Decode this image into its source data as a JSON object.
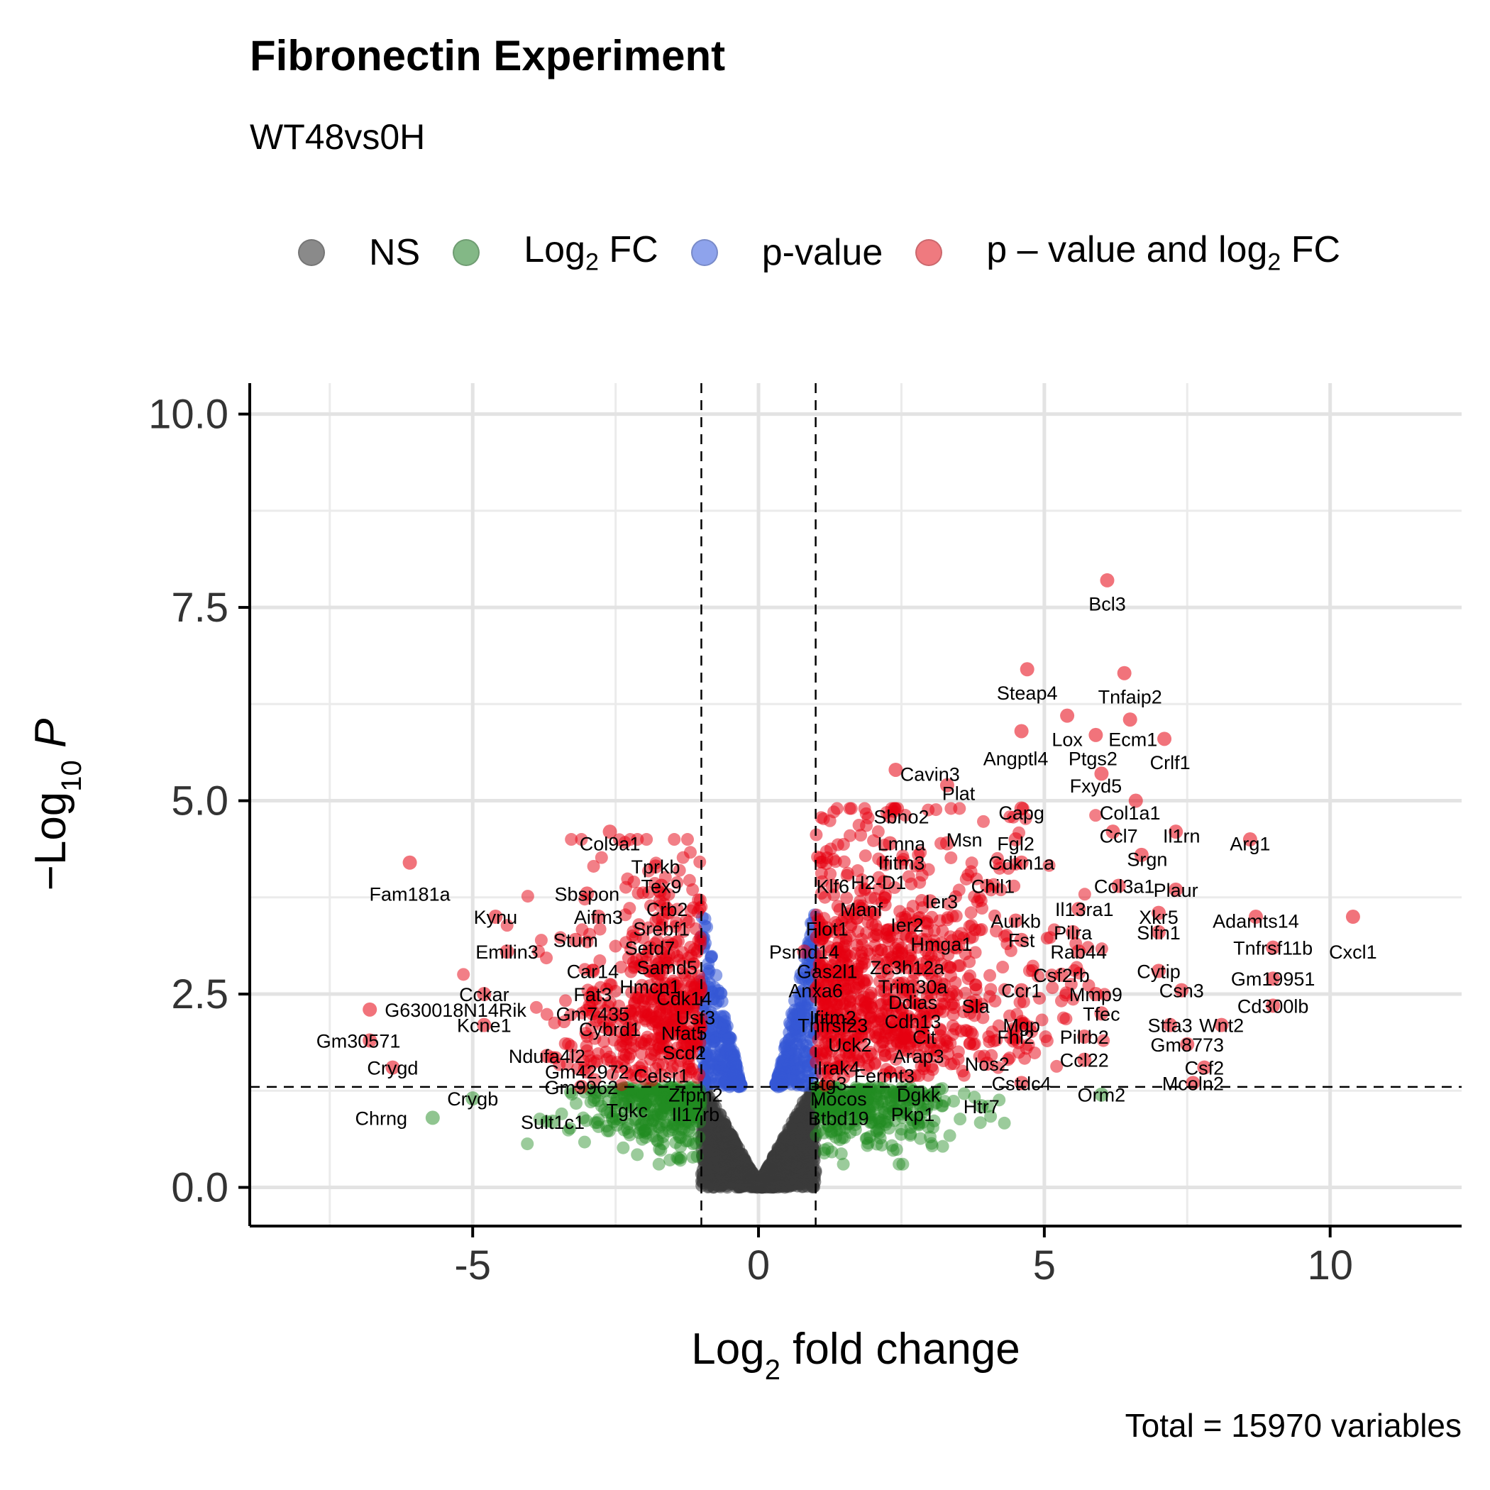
{
  "title": "Fibronectin Experiment",
  "subtitle": "WT48vs0H",
  "caption": "Total = 15970 variables",
  "legend": [
    {
      "key": "ns",
      "label": "NS",
      "color": "#666666"
    },
    {
      "key": "fc",
      "label": "Log2 FC",
      "color": "#228B22"
    },
    {
      "key": "p",
      "label": "p-value",
      "color": "#4169E1"
    },
    {
      "key": "both",
      "label": "p – value and log2 FC",
      "color": "#E8000B"
    }
  ],
  "chart_data": {
    "type": "scatter",
    "title": "Fibronectin Experiment",
    "subtitle": "WT48vs0H",
    "xlabel": "Log2 fold change",
    "ylabel": "-Log10 P",
    "xlim": [
      -8.9,
      12.3
    ],
    "ylim": [
      -0.5,
      10.4
    ],
    "xticks": [
      -5,
      0,
      5,
      10
    ],
    "yticks": [
      0.0,
      2.5,
      5.0,
      7.5,
      10.0
    ],
    "ytick_labels": [
      "0.0",
      "2.5",
      "5.0",
      "7.5",
      "10.0"
    ],
    "grid": true,
    "legend_position": "top",
    "cutoffs": {
      "log2fc": 1,
      "neg_log10_p": 1.3
    },
    "labeled_points": [
      {
        "gene": "Bcl3",
        "x": 6.1,
        "y": 7.85,
        "lx": 6.1,
        "ly": 7.55
      },
      {
        "gene": "Steap4",
        "x": 4.7,
        "y": 6.7,
        "lx": 4.7,
        "ly": 6.4
      },
      {
        "gene": "Tnfaip2",
        "x": 6.4,
        "y": 6.65,
        "lx": 6.5,
        "ly": 6.35
      },
      {
        "gene": "Lox",
        "x": 5.4,
        "y": 6.1,
        "lx": 5.4,
        "ly": 5.8
      },
      {
        "gene": "Ecm1",
        "x": 6.5,
        "y": 6.05,
        "lx": 6.55,
        "ly": 5.8
      },
      {
        "gene": "Angptl4",
        "x": 4.6,
        "y": 5.9,
        "lx": 4.5,
        "ly": 5.55
      },
      {
        "gene": "Ptgs2",
        "x": 5.9,
        "y": 5.85,
        "lx": 5.85,
        "ly": 5.55
      },
      {
        "gene": "Crlf1",
        "x": 7.1,
        "y": 5.8,
        "lx": 7.2,
        "ly": 5.5
      },
      {
        "gene": "Cavin3",
        "x": 2.4,
        "y": 5.4,
        "lx": 3.0,
        "ly": 5.35
      },
      {
        "gene": "Fxyd5",
        "x": 6.0,
        "y": 5.35,
        "lx": 5.9,
        "ly": 5.2
      },
      {
        "gene": "Plat",
        "x": 3.3,
        "y": 5.2,
        "lx": 3.5,
        "ly": 5.1
      },
      {
        "gene": "Col1a1",
        "x": 6.6,
        "y": 5.0,
        "lx": 6.5,
        "ly": 4.85
      },
      {
        "gene": "Capg",
        "x": 4.6,
        "y": 4.9,
        "lx": 4.6,
        "ly": 4.85
      },
      {
        "gene": "Sbno2",
        "x": 2.3,
        "y": 4.8,
        "lx": 2.5,
        "ly": 4.8
      },
      {
        "gene": "Ccl7",
        "x": 6.2,
        "y": 4.6,
        "lx": 6.3,
        "ly": 4.55
      },
      {
        "gene": "Il1rn",
        "x": 7.3,
        "y": 4.6,
        "lx": 7.4,
        "ly": 4.55
      },
      {
        "gene": "Lmna",
        "x": 2.3,
        "y": 4.45,
        "lx": 2.5,
        "ly": 4.45
      },
      {
        "gene": "Msn",
        "x": 3.3,
        "y": 4.45,
        "lx": 3.6,
        "ly": 4.5
      },
      {
        "gene": "Fgl2",
        "x": 4.5,
        "y": 4.5,
        "lx": 4.5,
        "ly": 4.45
      },
      {
        "gene": "Arg1",
        "x": 8.6,
        "y": 4.5,
        "lx": 8.6,
        "ly": 4.45
      },
      {
        "gene": "Ifitm3",
        "x": 2.5,
        "y": 4.2,
        "lx": 2.5,
        "ly": 4.2
      },
      {
        "gene": "Cdkn1a",
        "x": 4.6,
        "y": 4.2,
        "lx": 4.6,
        "ly": 4.2
      },
      {
        "gene": "Srgn",
        "x": 6.7,
        "y": 4.3,
        "lx": 6.8,
        "ly": 4.25
      },
      {
        "gene": "Klf6",
        "x": 1.3,
        "y": 3.9,
        "lx": 1.3,
        "ly": 3.9
      },
      {
        "gene": "H2-D1",
        "x": 2.2,
        "y": 3.95,
        "lx": 2.1,
        "ly": 3.95
      },
      {
        "gene": "Chil1",
        "x": 4.0,
        "y": 3.9,
        "lx": 4.1,
        "ly": 3.9
      },
      {
        "gene": "Col3a1",
        "x": 6.3,
        "y": 3.9,
        "lx": 6.4,
        "ly": 3.9
      },
      {
        "gene": "Plaur",
        "x": 7.3,
        "y": 3.85,
        "lx": 7.3,
        "ly": 3.85
      },
      {
        "gene": "Ier3",
        "x": 3.0,
        "y": 3.7,
        "lx": 3.2,
        "ly": 3.7
      },
      {
        "gene": "Manf",
        "x": 1.8,
        "y": 3.6,
        "lx": 1.8,
        "ly": 3.6
      },
      {
        "gene": "Il13ra1",
        "x": 5.6,
        "y": 3.6,
        "lx": 5.7,
        "ly": 3.6
      },
      {
        "gene": "Xkr5",
        "x": 7.0,
        "y": 3.55,
        "lx": 7.0,
        "ly": 3.5
      },
      {
        "gene": "Aurkb",
        "x": 4.5,
        "y": 3.45,
        "lx": 4.5,
        "ly": 3.45
      },
      {
        "gene": "Adamts14",
        "x": 8.7,
        "y": 3.5,
        "lx": 8.7,
        "ly": 3.45
      },
      {
        "gene": "Ier2",
        "x": 2.7,
        "y": 3.4,
        "lx": 2.6,
        "ly": 3.4
      },
      {
        "gene": "Flot1",
        "x": 1.2,
        "y": 3.35,
        "lx": 1.2,
        "ly": 3.35
      },
      {
        "gene": "Pilra",
        "x": 5.5,
        "y": 3.3,
        "lx": 5.5,
        "ly": 3.3
      },
      {
        "gene": "Slfn1",
        "x": 7.0,
        "y": 3.3,
        "lx": 7.0,
        "ly": 3.3
      },
      {
        "gene": "Hmga1",
        "x": 3.2,
        "y": 3.15,
        "lx": 3.2,
        "ly": 3.15
      },
      {
        "gene": "Fst",
        "x": 4.6,
        "y": 3.2,
        "lx": 4.6,
        "ly": 3.2
      },
      {
        "gene": "Psmd14",
        "x": 0.8,
        "y": 3.05,
        "lx": 0.8,
        "ly": 3.05
      },
      {
        "gene": "Rab44",
        "x": 5.6,
        "y": 3.05,
        "lx": 5.6,
        "ly": 3.05
      },
      {
        "gene": "Tnfrsf11b",
        "x": 9.0,
        "y": 3.1,
        "lx": 9.0,
        "ly": 3.1
      },
      {
        "gene": "Cxcl1",
        "x": 10.4,
        "y": 3.5,
        "lx": 10.4,
        "ly": 3.05
      },
      {
        "gene": "Zc3h12a",
        "x": 2.6,
        "y": 2.85,
        "lx": 2.6,
        "ly": 2.85
      },
      {
        "gene": "Gas2l1",
        "x": 1.2,
        "y": 2.8,
        "lx": 1.2,
        "ly": 2.8
      },
      {
        "gene": "Cytip",
        "x": 7.0,
        "y": 2.8,
        "lx": 7.0,
        "ly": 2.8
      },
      {
        "gene": "Csf2rb",
        "x": 5.3,
        "y": 2.75,
        "lx": 5.3,
        "ly": 2.75
      },
      {
        "gene": "Gm19951",
        "x": 9.0,
        "y": 2.7,
        "lx": 9.0,
        "ly": 2.7
      },
      {
        "gene": "Trim30a",
        "x": 2.7,
        "y": 2.6,
        "lx": 2.7,
        "ly": 2.6
      },
      {
        "gene": "Anxa6",
        "x": 1.0,
        "y": 2.55,
        "lx": 1.0,
        "ly": 2.55
      },
      {
        "gene": "Ccr1",
        "x": 4.6,
        "y": 2.55,
        "lx": 4.6,
        "ly": 2.55
      },
      {
        "gene": "Mmp9",
        "x": 5.9,
        "y": 2.5,
        "lx": 5.9,
        "ly": 2.5
      },
      {
        "gene": "Csn3",
        "x": 7.4,
        "y": 2.55,
        "lx": 7.4,
        "ly": 2.55
      },
      {
        "gene": "Ddias",
        "x": 2.7,
        "y": 2.4,
        "lx": 2.7,
        "ly": 2.4
      },
      {
        "gene": "Sla",
        "x": 3.8,
        "y": 2.35,
        "lx": 3.8,
        "ly": 2.35
      },
      {
        "gene": "Cd300lb",
        "x": 9.0,
        "y": 2.35,
        "lx": 9.0,
        "ly": 2.35
      },
      {
        "gene": "Ifitm2",
        "x": 1.3,
        "y": 2.2,
        "lx": 1.3,
        "ly": 2.2
      },
      {
        "gene": "Cdh13",
        "x": 2.7,
        "y": 2.15,
        "lx": 2.7,
        "ly": 2.15
      },
      {
        "gene": "Tfec",
        "x": 6.0,
        "y": 2.25,
        "lx": 6.0,
        "ly": 2.25
      },
      {
        "gene": "Tnfrsf23",
        "x": 1.3,
        "y": 2.1,
        "lx": 1.3,
        "ly": 2.1
      },
      {
        "gene": "Mgp",
        "x": 4.6,
        "y": 2.1,
        "lx": 4.6,
        "ly": 2.1
      },
      {
        "gene": "Stfa3",
        "x": 7.2,
        "y": 2.1,
        "lx": 7.2,
        "ly": 2.1
      },
      {
        "gene": "Wnt2",
        "x": 8.1,
        "y": 2.1,
        "lx": 8.1,
        "ly": 2.1
      },
      {
        "gene": "Cit",
        "x": 2.9,
        "y": 1.95,
        "lx": 2.9,
        "ly": 1.95
      },
      {
        "gene": "Fhl2",
        "x": 4.5,
        "y": 1.95,
        "lx": 4.5,
        "ly": 1.95
      },
      {
        "gene": "Pilrb2",
        "x": 5.7,
        "y": 1.95,
        "lx": 5.7,
        "ly": 1.95
      },
      {
        "gene": "Uck2",
        "x": 1.6,
        "y": 1.85,
        "lx": 1.6,
        "ly": 1.85
      },
      {
        "gene": "Gm8773",
        "x": 7.5,
        "y": 1.85,
        "lx": 7.5,
        "ly": 1.85
      },
      {
        "gene": "Arap3",
        "x": 2.8,
        "y": 1.7,
        "lx": 2.8,
        "ly": 1.7
      },
      {
        "gene": "Nos2",
        "x": 4.0,
        "y": 1.6,
        "lx": 4.0,
        "ly": 1.6
      },
      {
        "gene": "Ccl22",
        "x": 5.7,
        "y": 1.65,
        "lx": 5.7,
        "ly": 1.65
      },
      {
        "gene": "Irak4",
        "x": 1.4,
        "y": 1.55,
        "lx": 1.4,
        "ly": 1.55
      },
      {
        "gene": "Csf2",
        "x": 7.8,
        "y": 1.55,
        "lx": 7.8,
        "ly": 1.55
      },
      {
        "gene": "Fermt3",
        "x": 2.2,
        "y": 1.45,
        "lx": 2.2,
        "ly": 1.45
      },
      {
        "gene": "Btg3",
        "x": 1.2,
        "y": 1.35,
        "lx": 1.2,
        "ly": 1.35
      },
      {
        "gene": "Cstdc4",
        "x": 4.6,
        "y": 1.35,
        "lx": 4.6,
        "ly": 1.35
      },
      {
        "gene": "Mcoln2",
        "x": 7.6,
        "y": 1.35,
        "lx": 7.6,
        "ly": 1.35
      },
      {
        "gene": "Dgkk",
        "x": 2.8,
        "y": 1.2,
        "lx": 2.8,
        "ly": 1.2
      },
      {
        "gene": "Orm2",
        "x": 6.0,
        "y": 1.2,
        "lx": 6.0,
        "ly": 1.2
      },
      {
        "gene": "Mocos",
        "x": 1.4,
        "y": 1.15,
        "lx": 1.4,
        "ly": 1.15
      },
      {
        "gene": "Htr7",
        "x": 3.9,
        "y": 1.05,
        "lx": 3.9,
        "ly": 1.05
      },
      {
        "gene": "Pkp1",
        "x": 2.7,
        "y": 0.95,
        "lx": 2.7,
        "ly": 0.95
      },
      {
        "gene": "Btbd19",
        "x": 1.4,
        "y": 0.9,
        "lx": 1.4,
        "ly": 0.9
      },
      {
        "gene": "Col9a1",
        "x": -2.6,
        "y": 4.6,
        "lx": -2.6,
        "ly": 4.45
      },
      {
        "gene": "Tprkb",
        "x": -1.8,
        "y": 4.15,
        "lx": -1.8,
        "ly": 4.15
      },
      {
        "gene": "Tex9",
        "x": -1.7,
        "y": 3.9,
        "lx": -1.7,
        "ly": 3.9
      },
      {
        "gene": "Fam181a",
        "x": -6.1,
        "y": 4.2,
        "lx": -6.1,
        "ly": 3.8
      },
      {
        "gene": "Sbspon",
        "x": -3.0,
        "y": 3.8,
        "lx": -3.0,
        "ly": 3.8
      },
      {
        "gene": "Crb2",
        "x": -1.6,
        "y": 3.6,
        "lx": -1.6,
        "ly": 3.6
      },
      {
        "gene": "Kynu",
        "x": -4.6,
        "y": 3.5,
        "lx": -4.6,
        "ly": 3.5
      },
      {
        "gene": "Aifm3",
        "x": -2.8,
        "y": 3.5,
        "lx": -2.8,
        "ly": 3.5
      },
      {
        "gene": "Srebf1",
        "x": -1.7,
        "y": 3.35,
        "lx": -1.7,
        "ly": 3.35
      },
      {
        "gene": "Stum",
        "x": -3.2,
        "y": 3.2,
        "lx": -3.2,
        "ly": 3.2
      },
      {
        "gene": "Setd7",
        "x": -1.9,
        "y": 3.1,
        "lx": -1.9,
        "ly": 3.1
      },
      {
        "gene": "Emilin3",
        "x": -4.4,
        "y": 3.05,
        "lx": -4.4,
        "ly": 3.05
      },
      {
        "gene": "Samd5",
        "x": -1.6,
        "y": 2.85,
        "lx": -1.6,
        "ly": 2.85
      },
      {
        "gene": "Car14",
        "x": -2.9,
        "y": 2.8,
        "lx": -2.9,
        "ly": 2.8
      },
      {
        "gene": "Hmcn1",
        "x": -1.9,
        "y": 2.6,
        "lx": -1.9,
        "ly": 2.6
      },
      {
        "gene": "Cckar",
        "x": -4.8,
        "y": 2.5,
        "lx": -4.8,
        "ly": 2.5
      },
      {
        "gene": "Fat3",
        "x": -2.9,
        "y": 2.5,
        "lx": -2.9,
        "ly": 2.5
      },
      {
        "gene": "Cdk14",
        "x": -1.3,
        "y": 2.45,
        "lx": -1.3,
        "ly": 2.45
      },
      {
        "gene": "G630018N14Rik",
        "x": -6.8,
        "y": 2.3,
        "lx": -5.3,
        "ly": 2.3
      },
      {
        "gene": "Gm7435",
        "x": -2.9,
        "y": 2.25,
        "lx": -2.9,
        "ly": 2.25
      },
      {
        "gene": "Usf3",
        "x": -1.1,
        "y": 2.2,
        "lx": -1.1,
        "ly": 2.2
      },
      {
        "gene": "Kcne1",
        "x": -4.8,
        "y": 2.1,
        "lx": -4.8,
        "ly": 2.1
      },
      {
        "gene": "Cybrd1",
        "x": -2.6,
        "y": 2.05,
        "lx": -2.6,
        "ly": 2.05
      },
      {
        "gene": "Nfat5",
        "x": -1.3,
        "y": 2.0,
        "lx": -1.3,
        "ly": 2.0
      },
      {
        "gene": "Gm30571",
        "x": -6.8,
        "y": 1.9,
        "lx": -7.0,
        "ly": 1.9
      },
      {
        "gene": "Ndufa4l2",
        "x": -3.7,
        "y": 1.7,
        "lx": -3.7,
        "ly": 1.7
      },
      {
        "gene": "Scd2",
        "x": -1.3,
        "y": 1.75,
        "lx": -1.3,
        "ly": 1.75
      },
      {
        "gene": "Crygd",
        "x": -6.4,
        "y": 1.55,
        "lx": -6.4,
        "ly": 1.55
      },
      {
        "gene": "Gm42972",
        "x": -3.0,
        "y": 1.5,
        "lx": -3.0,
        "ly": 1.5
      },
      {
        "gene": "Celsr1",
        "x": -1.7,
        "y": 1.45,
        "lx": -1.7,
        "ly": 1.45
      },
      {
        "gene": "Gm9962",
        "x": -3.1,
        "y": 1.3,
        "lx": -3.1,
        "ly": 1.3
      },
      {
        "gene": "Zfpm2",
        "x": -1.1,
        "y": 1.2,
        "lx": -1.1,
        "ly": 1.2
      },
      {
        "gene": "Crygb",
        "x": -5.0,
        "y": 1.15,
        "lx": -5.0,
        "ly": 1.15
      },
      {
        "gene": "Tgkc",
        "x": -2.3,
        "y": 1.0,
        "lx": -2.3,
        "ly": 1.0
      },
      {
        "gene": "Il17rb",
        "x": -1.1,
        "y": 0.95,
        "lx": -1.1,
        "ly": 0.95
      },
      {
        "gene": "Chrng",
        "x": -5.7,
        "y": 0.9,
        "lx": -6.6,
        "ly": 0.9
      },
      {
        "gene": "Sult1c1",
        "x": -3.6,
        "y": 0.85,
        "lx": -3.6,
        "ly": 0.85
      }
    ]
  }
}
